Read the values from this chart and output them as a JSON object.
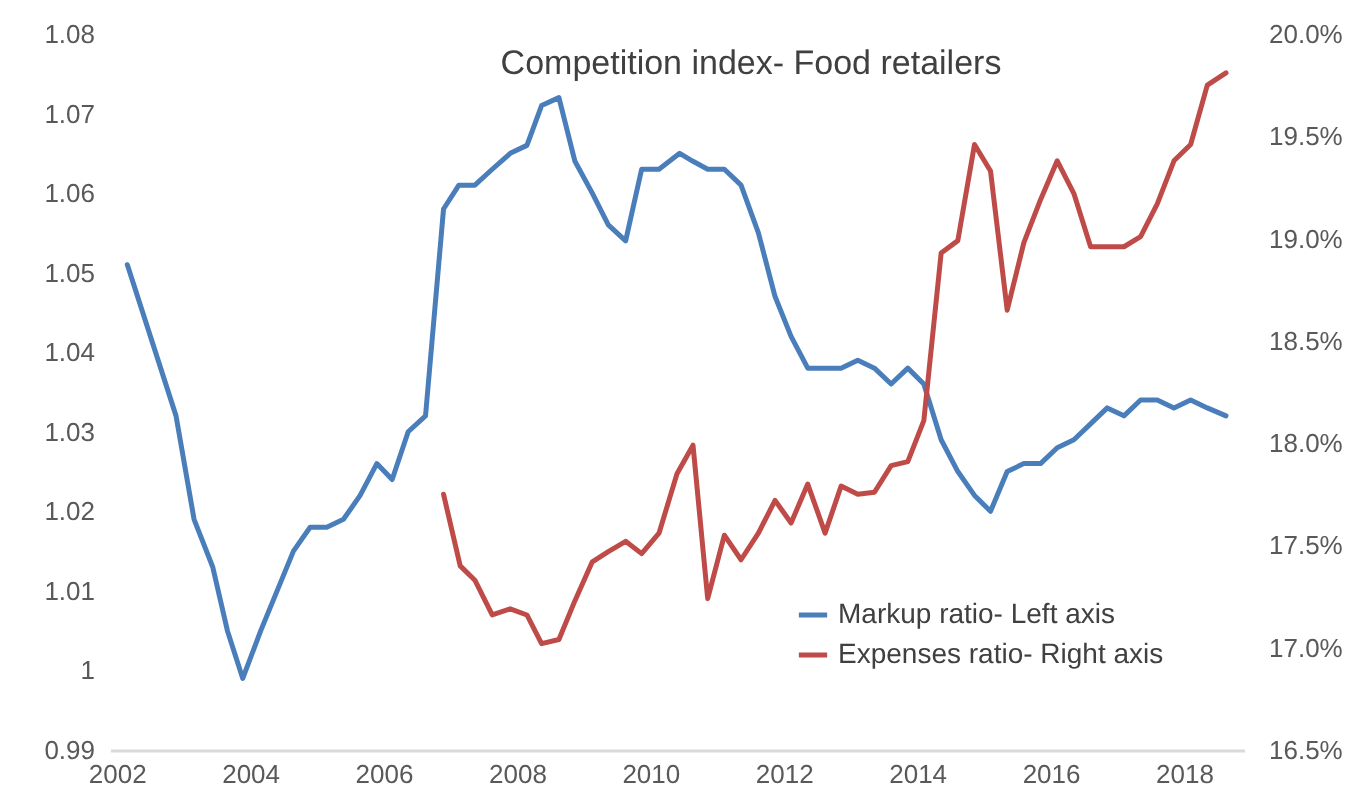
{
  "chart_data": {
    "type": "line",
    "title": "Competition index- Food retailers",
    "xlim": [
      2001.9,
      2018.9
    ],
    "xticks": [
      2002,
      2004,
      2006,
      2008,
      2010,
      2012,
      2014,
      2016,
      2018
    ],
    "ylim": [
      0.99,
      1.08
    ],
    "yticks": [
      0.99,
      1,
      1.01,
      1.02,
      1.03,
      1.04,
      1.05,
      1.06,
      1.07,
      1.08
    ],
    "y2lim": [
      16.5,
      20
    ],
    "y2ticks": [
      {
        "value": 16.5,
        "label": "16.5%"
      },
      {
        "value": 17,
        "label": "17.0%"
      },
      {
        "value": 17.5,
        "label": "17.5%"
      },
      {
        "value": 18,
        "label": "18.0%"
      },
      {
        "value": 18.5,
        "label": "18.5%"
      },
      {
        "value": 19,
        "label": "19.0%"
      },
      {
        "value": 19.5,
        "label": "19.5%"
      },
      {
        "value": 20,
        "label": "20.0%"
      }
    ],
    "grid": false,
    "legend": "bottom right",
    "series": [
      {
        "name": "Markup ratio- Left axis",
        "color": "#4a7ebb",
        "x": [
          2002.16,
          2002.89,
          2003.16,
          2003.44,
          2003.66,
          2003.89,
          2004.16,
          2004.65,
          2004.9,
          2005.15,
          2005.4,
          2005.65,
          2005.9,
          2006.13,
          2006.37,
          2006.63,
          2006.9,
          2007.13,
          2007.37,
          2007.63,
          2007.9,
          2008.15,
          2008.37,
          2008.63,
          2008.87,
          2009.13,
          2009.37,
          2009.63,
          2009.87,
          2010.13,
          2010.44,
          2010.64,
          2010.86,
          2011.11,
          2011.36,
          2011.62,
          2011.87,
          2012.11,
          2012.36,
          2012.62,
          2012.86,
          2013.11,
          2013.36,
          2013.61,
          2013.86,
          2014.1,
          2014.36,
          2014.61,
          2014.86,
          2015.1,
          2015.35,
          2015.6,
          2015.85,
          2016.1,
          2016.35,
          2016.6,
          2016.85,
          2017.1,
          2017.35,
          2017.6,
          2017.85,
          2018.1,
          2018.35,
          2018.63
        ],
        "values": [
          1.051,
          1.032,
          1.019,
          1.013,
          1.005,
          0.999,
          1.005,
          1.015,
          1.018,
          1.018,
          1.019,
          1.022,
          1.026,
          1.024,
          1.03,
          1.032,
          1.058,
          1.061,
          1.061,
          1.063,
          1.065,
          1.066,
          1.071,
          1.072,
          1.064,
          1.06,
          1.056,
          1.054,
          1.063,
          1.063,
          1.065,
          1.064,
          1.063,
          1.063,
          1.061,
          1.055,
          1.047,
          1.042,
          1.038,
          1.038,
          1.038,
          1.039,
          1.038,
          1.036,
          1.038,
          1.036,
          1.029,
          1.025,
          1.022,
          1.02,
          1.025,
          1.026,
          1.026,
          1.028,
          1.029,
          1.031,
          1.033,
          1.032,
          1.034,
          1.034,
          1.033,
          1.034,
          1.033,
          1.032
        ]
      },
      {
        "name": "Expenses ratio- Right axis",
        "color": "#be4b48",
        "axis": "y2",
        "x": [
          2006.9,
          2007.15,
          2007.37,
          2007.63,
          2007.9,
          2008.15,
          2008.37,
          2008.63,
          2008.87,
          2009.13,
          2009.37,
          2009.63,
          2009.87,
          2010.13,
          2010.4,
          2010.64,
          2010.86,
          2011.11,
          2011.36,
          2011.62,
          2011.87,
          2012.11,
          2012.36,
          2012.62,
          2012.86,
          2013.11,
          2013.36,
          2013.61,
          2013.86,
          2014.1,
          2014.36,
          2014.61,
          2014.86,
          2015.1,
          2015.35,
          2015.6,
          2015.85,
          2016.1,
          2016.35,
          2016.6,
          2016.85,
          2017.1,
          2017.35,
          2017.6,
          2017.85,
          2018.1,
          2018.35,
          2018.63
        ],
        "values": [
          17.75,
          17.4,
          17.33,
          17.16,
          17.19,
          17.16,
          17.02,
          17.04,
          17.23,
          17.42,
          17.47,
          17.52,
          17.46,
          17.56,
          17.85,
          17.99,
          17.24,
          17.55,
          17.43,
          17.56,
          17.72,
          17.61,
          17.8,
          17.56,
          17.79,
          17.75,
          17.76,
          17.89,
          17.91,
          18.11,
          18.93,
          18.99,
          19.46,
          19.33,
          18.65,
          18.98,
          19.19,
          19.38,
          19.22,
          18.96,
          18.96,
          18.96,
          19.01,
          19.17,
          19.38,
          19.46,
          19.75,
          19.81
        ]
      }
    ]
  }
}
